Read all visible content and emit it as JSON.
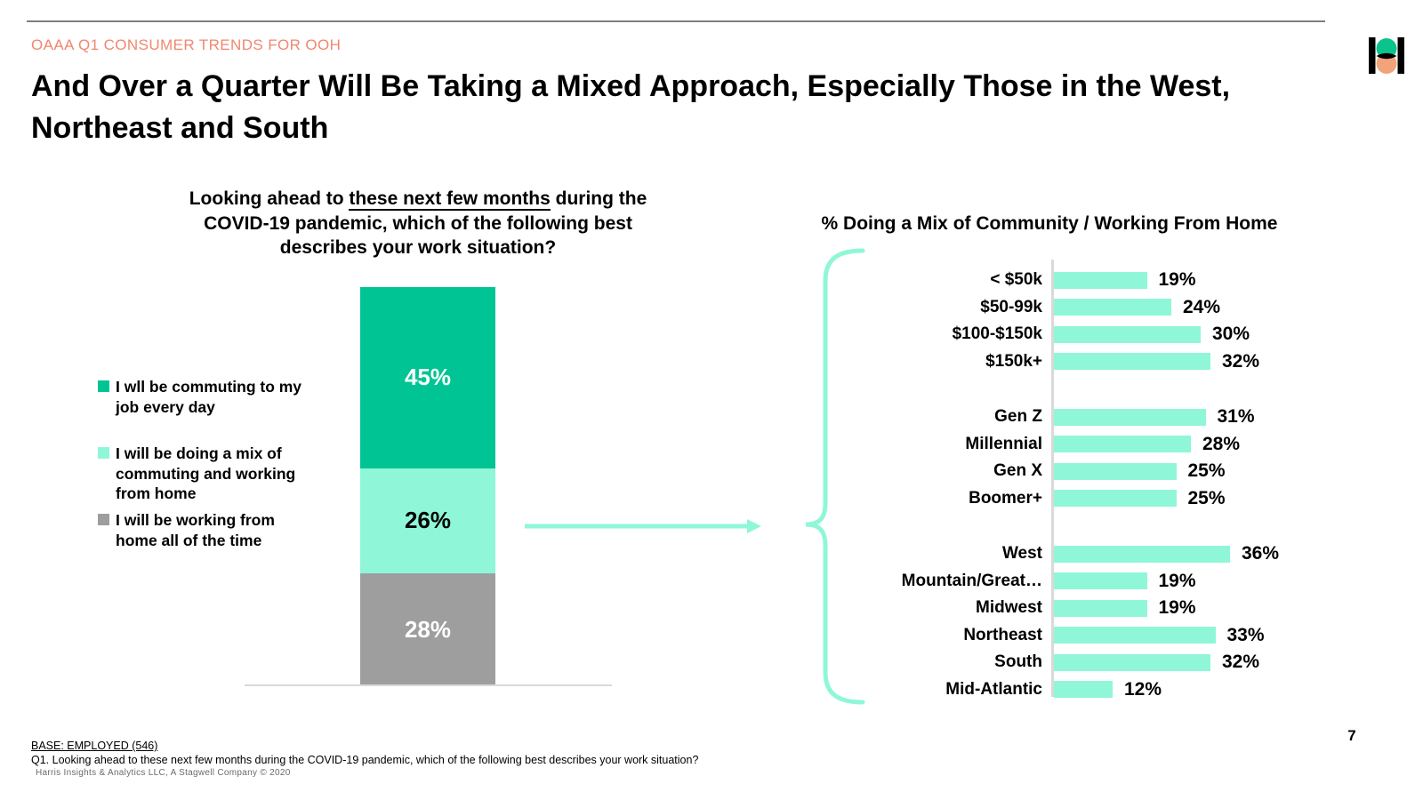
{
  "page": {
    "eyebrow": "OAAA Q1 CONSUMER TRENDS FOR OOH",
    "title": "And Over a Quarter Will Be Taking a Mixed Approach, Especially Those in the West, Northeast and South",
    "page_number": "7"
  },
  "colors": {
    "accent_mint": "#8FF7D8",
    "accent_green": "#00C493",
    "accent_gray": "#9E9E9E",
    "eyebrow_orange": "#F0876F",
    "logo_green": "#0BC38D",
    "logo_orange": "#F2A379",
    "axis_gray": "#D9D9D9",
    "rule_gray": "#7F7F7F",
    "white": "#FFFFFF",
    "black": "#000000"
  },
  "footer": {
    "base_label": "BASE: EMPLOYED (546)",
    "question": "Q1. Looking ahead to these next few months during the COVID-19 pandemic, which of the following best describes your work situation?",
    "copyright": "Harris Insights & Analytics LLC, A Stagwell Company © 2020"
  },
  "chart_data": [
    {
      "type": "bar",
      "subtype": "stacked-column",
      "title_parts": {
        "before": "Looking ahead to ",
        "underlined": "these next few months",
        "after": " during the COVID-19 pandemic, which of the following best describes your work situation?"
      },
      "legend_position": "left",
      "ylim": [
        0,
        100
      ],
      "segments": [
        {
          "label": "I wll be commuting to my job every day",
          "value": 45,
          "display": "45%",
          "color": "#00C493",
          "label_color": "#FFFFFF"
        },
        {
          "label": "I will be doing a mix of commuting and working from home",
          "value": 26,
          "display": "26%",
          "color": "#8FF7D8",
          "label_color": "#000000"
        },
        {
          "label": "I will be working from home all of the time",
          "value": 28,
          "display": "28%",
          "color": "#9E9E9E",
          "label_color": "#FFFFFF"
        }
      ]
    },
    {
      "type": "bar",
      "subtype": "horizontal-grouped",
      "title": "% Doing a Mix of Community / Working From Home",
      "unit": "%",
      "xlim": [
        0,
        40
      ],
      "bar_color": "#8FF7D8",
      "groups": [
        {
          "rows": [
            {
              "label": "< $50k",
              "value": 19,
              "display": "19%"
            },
            {
              "label": "$50-99k",
              "value": 24,
              "display": "24%"
            },
            {
              "label": "$100-$150k",
              "value": 30,
              "display": "30%"
            },
            {
              "label": "$150k+",
              "value": 32,
              "display": "32%"
            }
          ]
        },
        {
          "rows": [
            {
              "label": "Gen Z",
              "value": 31,
              "display": "31%"
            },
            {
              "label": "Millennial",
              "value": 28,
              "display": "28%"
            },
            {
              "label": "Gen X",
              "value": 25,
              "display": "25%"
            },
            {
              "label": "Boomer+",
              "value": 25,
              "display": "25%"
            }
          ]
        },
        {
          "rows": [
            {
              "label": "West",
              "value": 36,
              "display": "36%"
            },
            {
              "label": "Mountain/Great…",
              "value": 19,
              "display": "19%"
            },
            {
              "label": "Midwest",
              "value": 19,
              "display": "19%"
            },
            {
              "label": "Northeast",
              "value": 33,
              "display": "33%"
            },
            {
              "label": "South",
              "value": 32,
              "display": "32%"
            },
            {
              "label": "Mid-Atlantic",
              "value": 12,
              "display": "12%"
            }
          ]
        }
      ]
    }
  ]
}
